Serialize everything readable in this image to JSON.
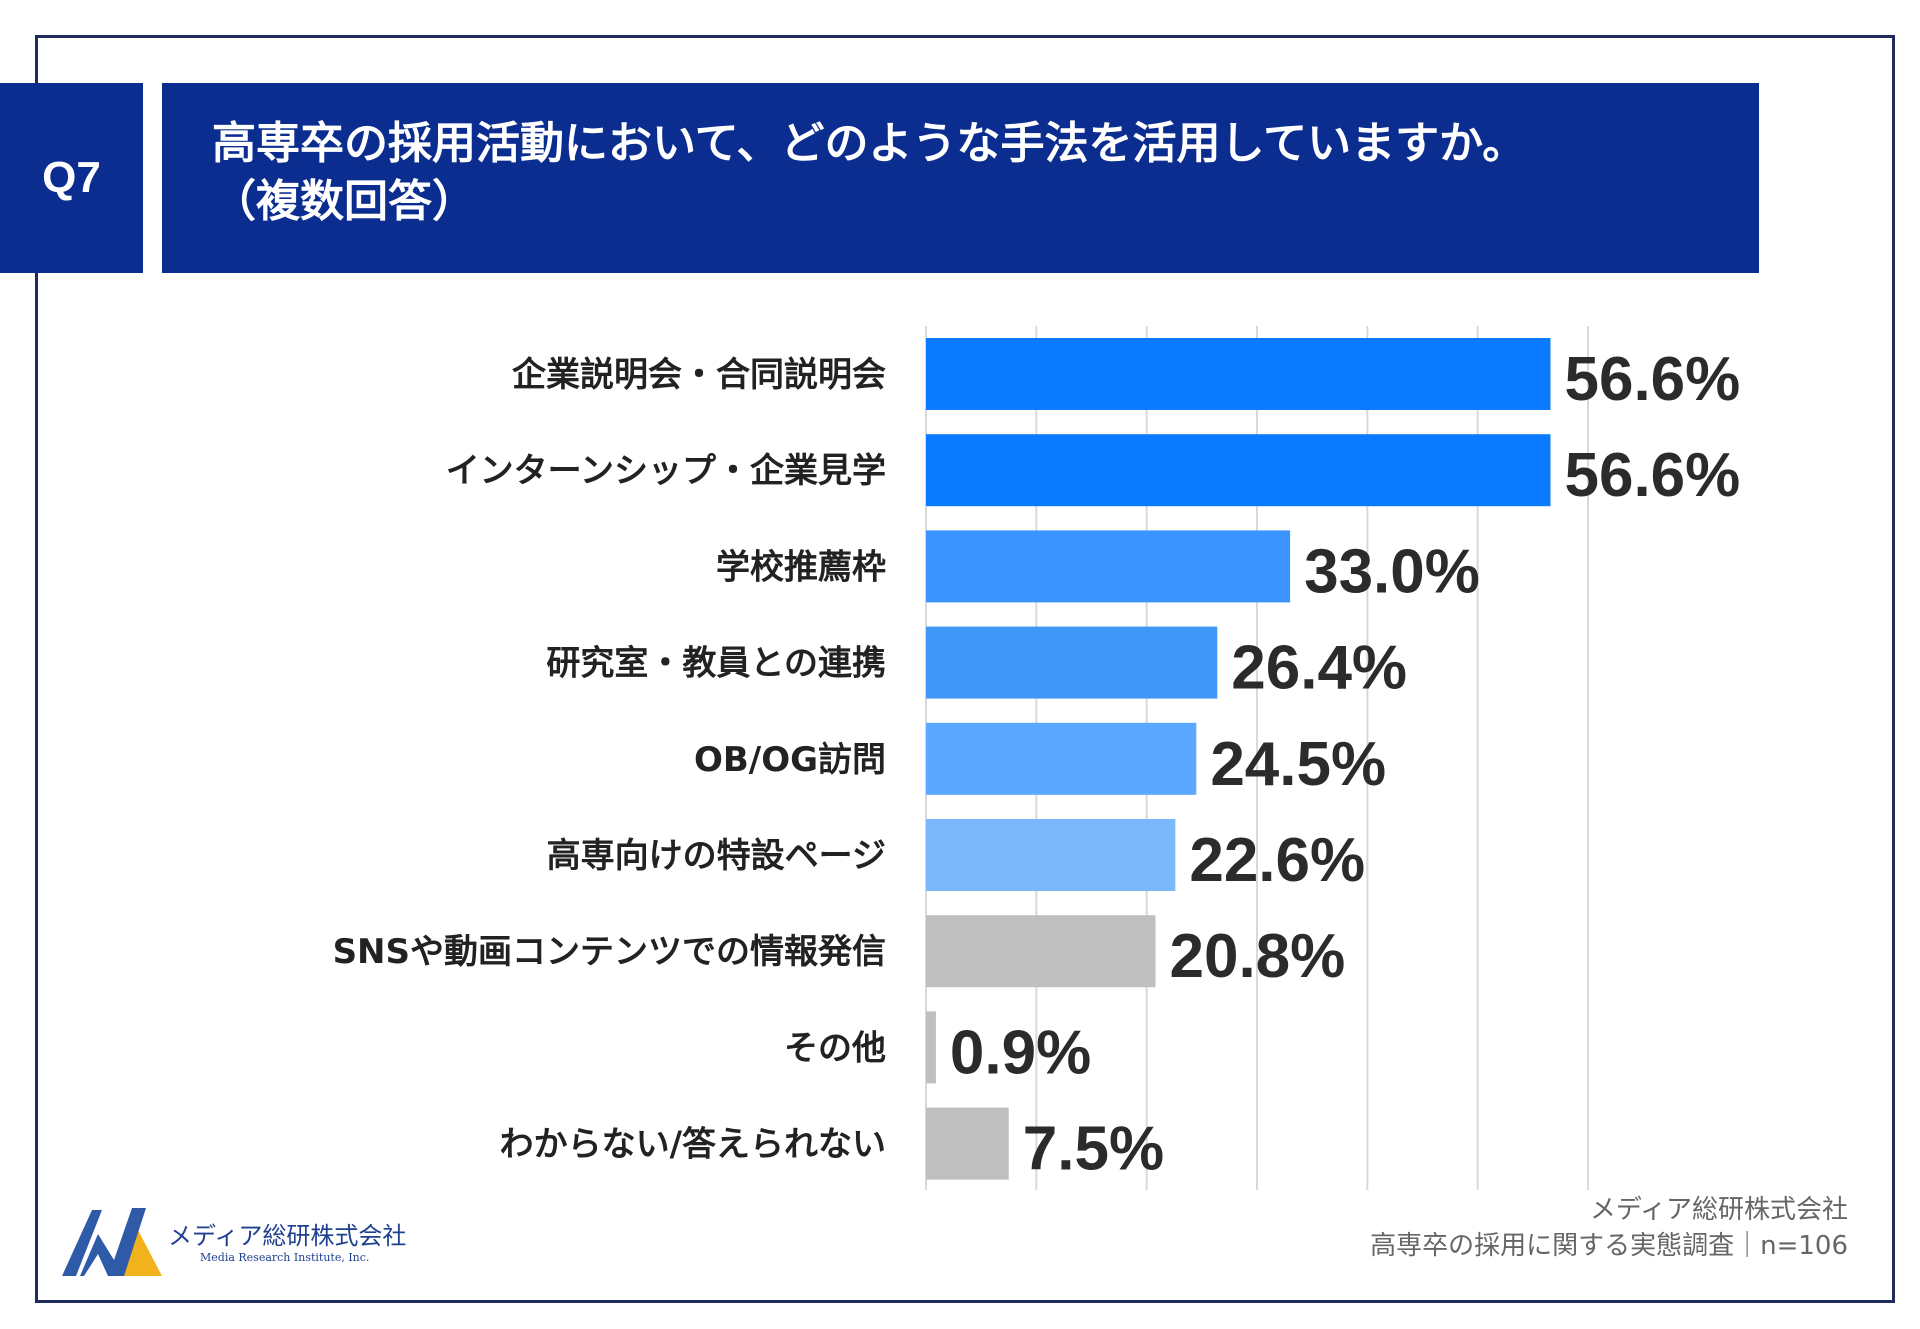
{
  "header": {
    "q_label": "Q7",
    "title_line1": "高専卒の採用活動において、どのような手法を活用していますか。",
    "title_line2": "（複数回答）"
  },
  "chart_data": {
    "type": "bar",
    "orientation": "horizontal",
    "grid": true,
    "categories": [
      "企業説明会・合同説明会",
      "インターンシップ・企業見学",
      "学校推薦枠",
      "研究室・教員との連携",
      "OB/OG訪問",
      "高専向けの特設ページ",
      "SNSや動画コンテンツでの情報発信",
      "その他",
      "わからない/答えられない"
    ],
    "values": [
      56.6,
      56.6,
      33.0,
      26.4,
      24.5,
      22.6,
      20.8,
      0.9,
      7.5
    ],
    "value_labels": [
      "56.6%",
      "56.6%",
      "33.0%",
      "26.4%",
      "24.5%",
      "22.6%",
      "20.8%",
      "0.9%",
      "7.5%"
    ],
    "colors": [
      "#0a7aff",
      "#0a7aff",
      "#3a93ff",
      "#3f97f8",
      "#5aa8ff",
      "#7ab8fb",
      "#bfbfbf",
      "#bfbfbf",
      "#bfbfbf"
    ],
    "xlim": [
      0,
      60
    ]
  },
  "footer": {
    "company": "メディア総研株式会社",
    "company_en": "Media Research Institute, Inc.",
    "source_line1": "メディア総研株式会社",
    "source_line2": "高専卒の採用に関する実態調査｜n=106"
  },
  "logo_colors": {
    "blue": "#2f5aa8",
    "yellow": "#f2b21b"
  }
}
